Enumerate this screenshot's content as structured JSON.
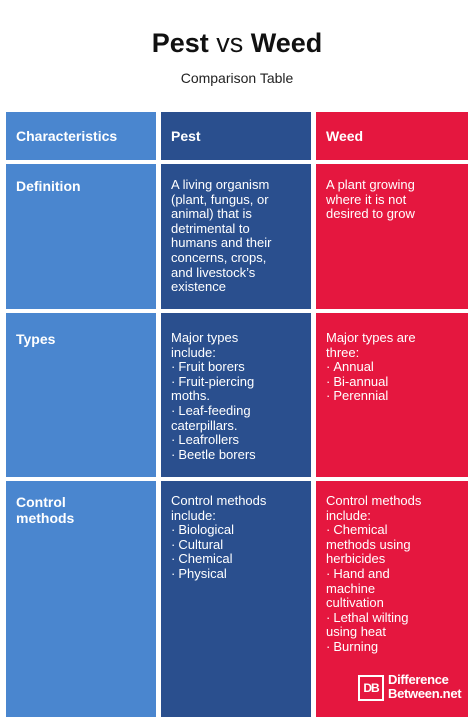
{
  "title": {
    "part1": "Pest",
    "vs": "vs",
    "part2": "Weed"
  },
  "subtitle": "Comparison Table",
  "headers": [
    "Characteristics",
    "Pest",
    "Weed"
  ],
  "rows": [
    {
      "label": "Definition",
      "pest": [
        "A living organism",
        "(plant, fungus, or",
        "animal) that is",
        "detrimental to",
        "humans and their",
        "concerns, crops,",
        "and livestock’s",
        "existence"
      ],
      "weed": [
        "A plant growing",
        "where it is not",
        "desired to grow"
      ]
    },
    {
      "label": "Types",
      "pest_intro": [
        "Major types",
        "include:"
      ],
      "pest_items": [
        [
          "Fruit borers"
        ],
        [
          "Fruit-piercing",
          "moths."
        ],
        [
          "Leaf-feeding",
          "caterpillars."
        ],
        [
          "Leafrollers"
        ],
        [
          "Beetle borers"
        ]
      ],
      "weed_intro": [
        "Major types are",
        "three:"
      ],
      "weed_items": [
        [
          "Annual"
        ],
        [
          "Bi-annual"
        ],
        [
          "Perennial"
        ]
      ]
    },
    {
      "label_lines": [
        "Control",
        "methods"
      ],
      "pest_intro": [
        "Control methods",
        "include:"
      ],
      "pest_items": [
        [
          "Biological"
        ],
        [
          "Cultural"
        ],
        [
          "Chemical"
        ],
        [
          "Physical"
        ]
      ],
      "weed_intro": [
        "Control methods",
        "include:"
      ],
      "weed_items": [
        [
          "Chemical",
          "methods using",
          "herbicides"
        ],
        [
          "Hand and",
          "machine",
          "cultivation"
        ],
        [
          "Lethal wilting",
          "using heat"
        ],
        [
          "Burning"
        ]
      ]
    }
  ],
  "logo": {
    "mark": "DB",
    "line1": "Difference",
    "line2": "Between.net"
  },
  "colors": {
    "characteristics": "#4a86cf",
    "pest": "#2a4f8e",
    "weed": "#e5173f"
  }
}
